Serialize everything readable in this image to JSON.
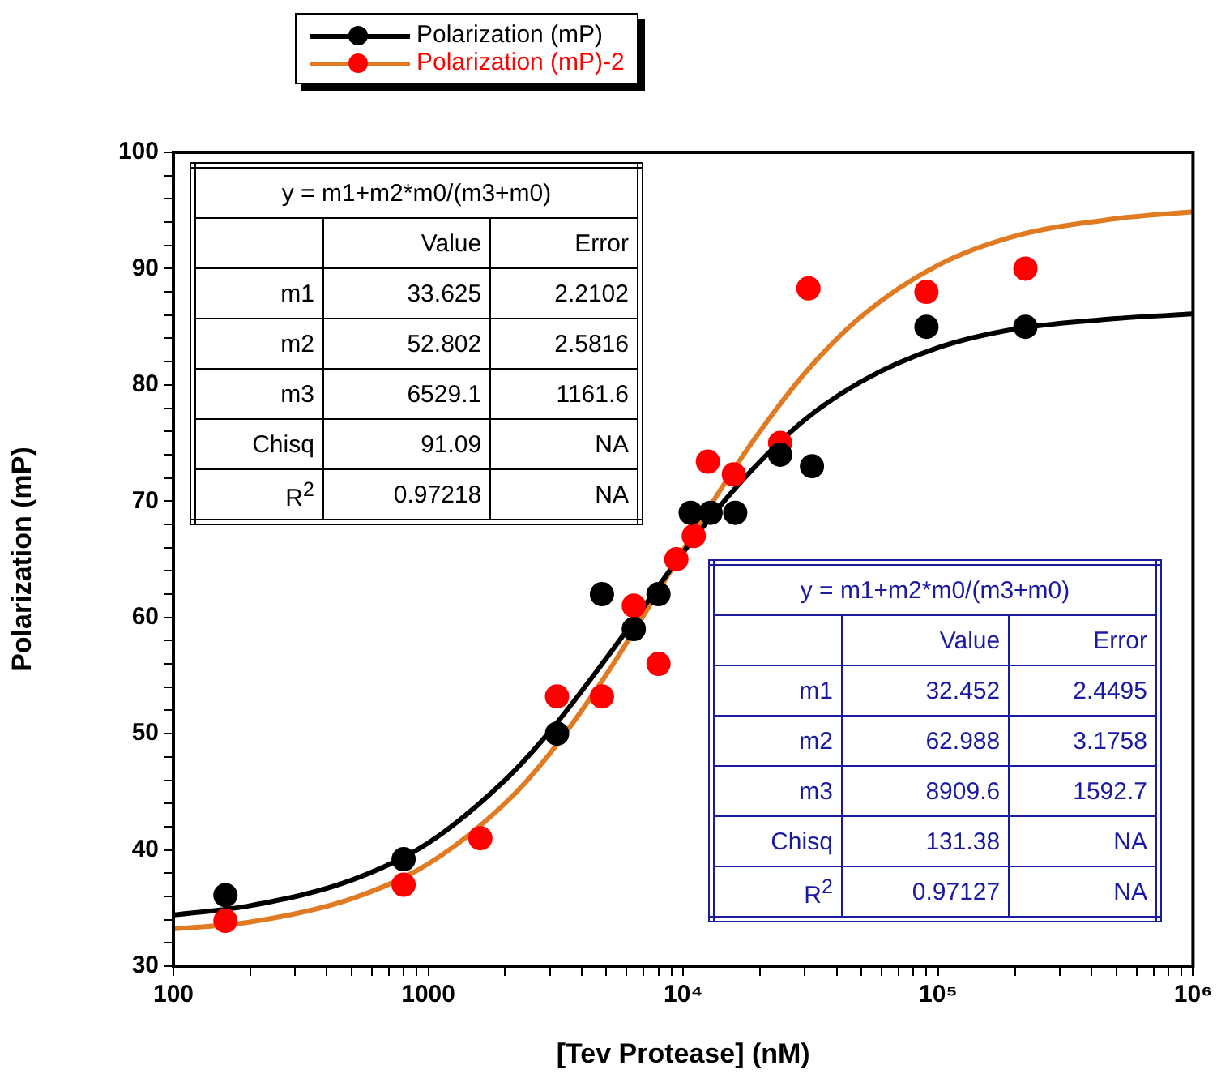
{
  "chart_data": {
    "type": "scatter",
    "xlabel": "[Tev Protease] (nM)",
    "ylabel": "Polarization (mP)",
    "log": "x",
    "legend": "top",
    "xlim": [
      100,
      1000000
    ],
    "ylim": [
      30,
      100
    ],
    "xticks": [
      100,
      {
        "value": 200,
        "label": null
      },
      {
        "value": 300,
        "label": null
      },
      {
        "value": 400,
        "label": null
      },
      {
        "value": 500,
        "label": null
      },
      {
        "value": 600,
        "label": null
      },
      {
        "value": 700,
        "label": null
      },
      {
        "value": 800,
        "label": null
      },
      {
        "value": 900,
        "label": null
      },
      1000,
      {
        "value": 2000,
        "label": null
      },
      {
        "value": 3000,
        "label": null
      },
      {
        "value": 4000,
        "label": null
      },
      {
        "value": 5000,
        "label": null
      },
      {
        "value": 6000,
        "label": null
      },
      {
        "value": 7000,
        "label": null
      },
      {
        "value": 8000,
        "label": null
      },
      {
        "value": 9000,
        "label": null
      },
      {
        "value": 10000,
        "label": "10⁴"
      },
      {
        "value": 20000,
        "label": null
      },
      {
        "value": 30000,
        "label": null
      },
      {
        "value": 40000,
        "label": null
      },
      {
        "value": 50000,
        "label": null
      },
      {
        "value": 60000,
        "label": null
      },
      {
        "value": 70000,
        "label": null
      },
      {
        "value": 80000,
        "label": null
      },
      {
        "value": 90000,
        "label": null
      },
      {
        "value": 100000,
        "label": "10⁵"
      },
      {
        "value": 200000,
        "label": null
      },
      {
        "value": 300000,
        "label": null
      },
      {
        "value": 400000,
        "label": null
      },
      {
        "value": 500000,
        "label": null
      },
      {
        "value": 600000,
        "label": null
      },
      {
        "value": 700000,
        "label": null
      },
      {
        "value": 800000,
        "label": null
      },
      {
        "value": 900000,
        "label": null
      },
      {
        "value": 1000000,
        "label": "10⁶"
      }
    ],
    "yticks": [
      30,
      {
        "value": 32,
        "label": null
      },
      {
        "value": 34,
        "label": null
      },
      {
        "value": 36,
        "label": null
      },
      {
        "value": 38,
        "label": null
      },
      40,
      {
        "value": 42,
        "label": null
      },
      {
        "value": 44,
        "label": null
      },
      {
        "value": 46,
        "label": null
      },
      {
        "value": 48,
        "label": null
      },
      50,
      {
        "value": 52,
        "label": null
      },
      {
        "value": 54,
        "label": null
      },
      {
        "value": 56,
        "label": null
      },
      {
        "value": 58,
        "label": null
      },
      60,
      {
        "value": 62,
        "label": null
      },
      {
        "value": 64,
        "label": null
      },
      {
        "value": 66,
        "label": null
      },
      {
        "value": 68,
        "label": null
      },
      70,
      {
        "value": 72,
        "label": null
      },
      {
        "value": 74,
        "label": null
      },
      {
        "value": 76,
        "label": null
      },
      {
        "value": 78,
        "label": null
      },
      80,
      {
        "value": 82,
        "label": null
      },
      {
        "value": 84,
        "label": null
      },
      {
        "value": 86,
        "label": null
      },
      {
        "value": 88,
        "label": null
      },
      90,
      {
        "value": 92,
        "label": null
      },
      {
        "value": 94,
        "label": null
      },
      {
        "value": 96,
        "label": null
      },
      {
        "value": 98,
        "label": null
      },
      100
    ],
    "marker": "circle",
    "series": [
      {
        "name": "Polarization (mP)",
        "color": "#000000",
        "x": [
          160,
          800,
          3200,
          4800,
          6400,
          8000,
          10700,
          12800,
          16000,
          24000,
          32000,
          90000,
          220000
        ],
        "values": [
          36.1,
          39.2,
          50,
          62,
          59,
          62,
          69,
          69,
          69,
          74,
          73,
          85,
          85
        ]
      },
      {
        "name": "Polarization (mP)-2",
        "color": "#ff0000",
        "x": [
          160,
          800,
          1600,
          3200,
          4800,
          6400,
          8000,
          9400,
          11000,
          12500,
          15800,
          24000,
          31000,
          90000,
          220000
        ],
        "values": [
          33.9,
          37,
          41,
          53.2,
          53.2,
          61,
          56,
          65,
          67,
          73.4,
          72.3,
          75,
          88.3,
          88,
          90
        ]
      },
      {
        "type": "line",
        "color": "#000000",
        "marker": "none",
        "x": [
          100,
          200,
          500,
          1000,
          2000,
          3000,
          5000,
          7000,
          10000,
          15000,
          20000,
          30000,
          50000,
          100000,
          200000,
          500000,
          1000000
        ],
        "values": [
          34.4,
          35.2,
          37.4,
          40.6,
          46.0,
          50.2,
          56.5,
          60.9,
          65.6,
          70.4,
          73.4,
          77.0,
          80.3,
          83.2,
          84.8,
          85.7,
          86.1
        ]
      },
      {
        "type": "line",
        "color": "#e07b24",
        "marker": "none",
        "x": [
          100,
          200,
          500,
          1000,
          2000,
          3000,
          5000,
          7000,
          10000,
          15000,
          20000,
          30000,
          50000,
          100000,
          200000,
          500000,
          1000000
        ],
        "values": [
          33.2,
          33.8,
          35.8,
          38.8,
          44.0,
          48.3,
          55.1,
          60.2,
          65.8,
          72.0,
          76.0,
          81.0,
          85.9,
          90.3,
          92.8,
          94.3,
          94.9
        ]
      }
    ],
    "annotations": [
      "y = m1+m2*m0/(m3+m0)",
      "Value",
      "Error",
      "m1",
      "33.625",
      "2.2102",
      "m2",
      "52.802",
      "2.5816",
      "m3",
      "6529.1",
      "1161.6",
      "Chisq",
      "91.09",
      "NA",
      "R$^{2}$",
      "0.97218",
      "NA",
      "y = m1+m2*m0/(m3+m0)",
      "Value",
      "Error",
      "m1",
      "32.452",
      "2.4495",
      "m2",
      "62.988",
      "3.1758",
      "m3",
      "8909.6",
      "1592.7",
      "Chisq",
      "131.38",
      "NA",
      "R$^{2}$",
      "0.97127",
      "NA"
    ]
  }
}
